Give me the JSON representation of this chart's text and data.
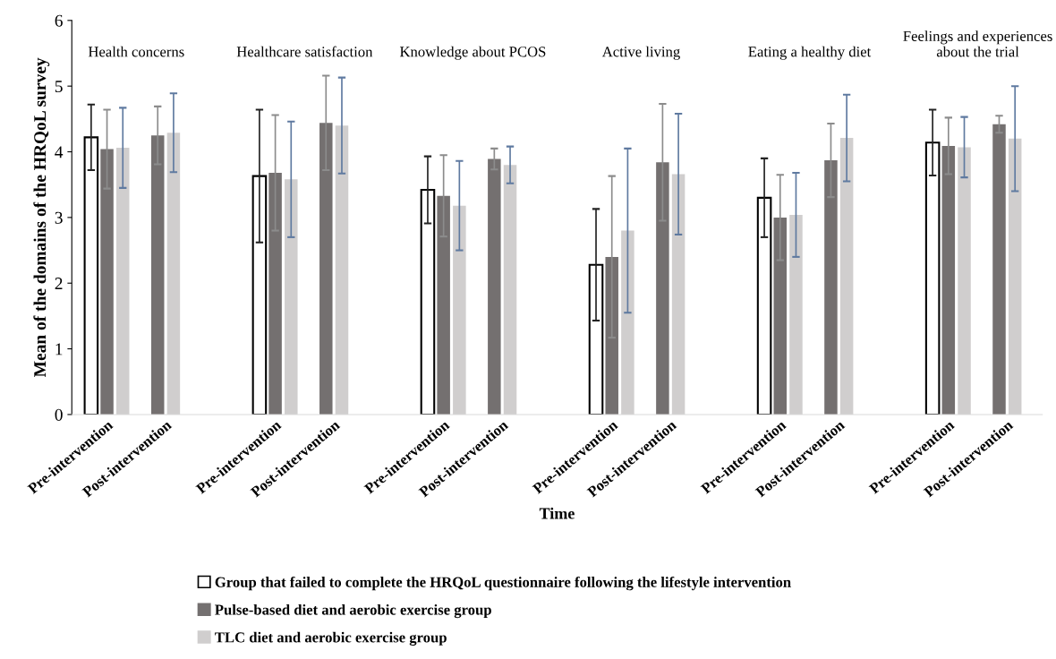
{
  "chart_data": {
    "type": "bar",
    "xlabel": "Time",
    "ylabel": "Mean of the domains of the HRQoL survey",
    "categories": [
      "Pre-intervention",
      "Post-intervention",
      "Pre-intervention",
      "Post-intervention",
      "Pre-intervention",
      "Post-intervention",
      "Pre-intervention",
      "Post-intervention",
      "Pre-intervention",
      "Post-intervention",
      "Pre-intervention",
      "Post-intervention"
    ],
    "annotations": [
      "Health concerns",
      "Healthcare satisfaction",
      "Knowledge about PCOS",
      "Active living",
      "Eating a healthy diet",
      "Feelings and experiences about the trial"
    ],
    "series": [
      {
        "name": "Group that failed to complete the HRQoL questionnaire following the lifestyle intervention",
        "color": "#ffffff",
        "values": [
          4.22,
          null,
          3.63,
          null,
          3.42,
          null,
          2.28,
          null,
          3.3,
          null,
          4.14,
          null
        ],
        "errors": [
          0.5,
          null,
          1.01,
          null,
          0.51,
          null,
          0.85,
          null,
          0.6,
          null,
          0.5,
          null
        ]
      },
      {
        "name": "Pulse-based diet and aerobic exercise group",
        "color": "#747070",
        "values": [
          4.04,
          4.25,
          3.68,
          4.44,
          3.33,
          3.89,
          2.4,
          3.84,
          3.0,
          3.87,
          4.09,
          4.42
        ],
        "errors": [
          0.6,
          0.44,
          0.88,
          0.72,
          0.62,
          0.16,
          1.23,
          0.89,
          0.65,
          0.56,
          0.43,
          0.13
        ]
      },
      {
        "name": "TLC diet and aerobic exercise group",
        "color": "#d0cece",
        "values": [
          4.06,
          4.29,
          3.58,
          4.4,
          3.18,
          3.8,
          2.8,
          3.66,
          3.04,
          4.21,
          4.07,
          4.2
        ],
        "errors": [
          0.61,
          0.6,
          0.88,
          0.73,
          0.68,
          0.28,
          1.25,
          0.92,
          0.64,
          0.66,
          0.46,
          0.8
        ]
      }
    ],
    "ylim": [
      0,
      6
    ],
    "yticks": [
      0,
      1,
      2,
      3,
      4,
      5,
      6
    ],
    "grid": false,
    "legend": "bottom"
  }
}
